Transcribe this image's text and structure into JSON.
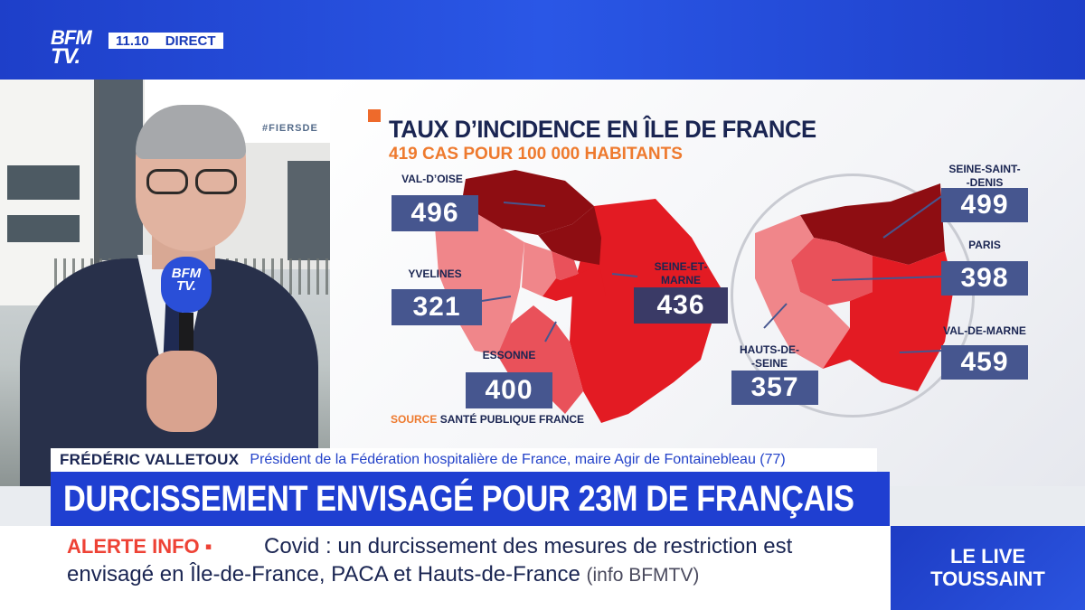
{
  "channel": {
    "logo_line1": "BFM",
    "logo_line2": "TV.",
    "time": "11.10",
    "status": "DIRECT"
  },
  "background": {
    "banner_text": "#FIERSDE",
    "mic_line1": "BFM",
    "mic_line2": "TV."
  },
  "infographic": {
    "title": "TAUX D’INCIDENCE EN ÎLE DE FRANCE",
    "subtitle": "419 CAS POUR 100 000 HABITANTS",
    "source_key": "SOURCE",
    "source_value": "SANTÉ PUBLIQUE FRANCE",
    "colors": {
      "dark_red": "#8e0d12",
      "red": "#e31b23",
      "pink": "#f0868a",
      "medium": "#e9515a",
      "value_box": "#46568f"
    },
    "departments": [
      {
        "name": "VAL-D’OISE",
        "value": "496"
      },
      {
        "name": "YVELINES",
        "value": "321"
      },
      {
        "name": "SEINE-ET-\nMARNE",
        "value": "436"
      },
      {
        "name": "ESSONNE",
        "value": "400"
      },
      {
        "name": "SEINE-SAINT-\n-DENIS",
        "value": "499"
      },
      {
        "name": "PARIS",
        "value": "398"
      },
      {
        "name": "VAL-DE-MARNE",
        "value": "459"
      },
      {
        "name": "HAUTS-DE-\n-SEINE",
        "value": "357"
      }
    ]
  },
  "lower_third": {
    "name": "FRÉDÉRIC VALLETOUX",
    "role": "Président de la Fédération hospitalière de France, maire Agir de Fontainebleau (77)",
    "headline": "DURCISSEMENT ENVISAGÉ POUR 23M DE FRANÇAIS"
  },
  "ticker": {
    "label": "ALERTE INFO ▪",
    "line1": "Covid : un durcissement des mesures de restriction est",
    "line2": "envisagé en Île-de-France, PACA et Hauts-de-France",
    "credit": "(info BFMTV)"
  },
  "side_promo": {
    "line1": "LE LIVE",
    "line2": "TOUSSAINT"
  }
}
